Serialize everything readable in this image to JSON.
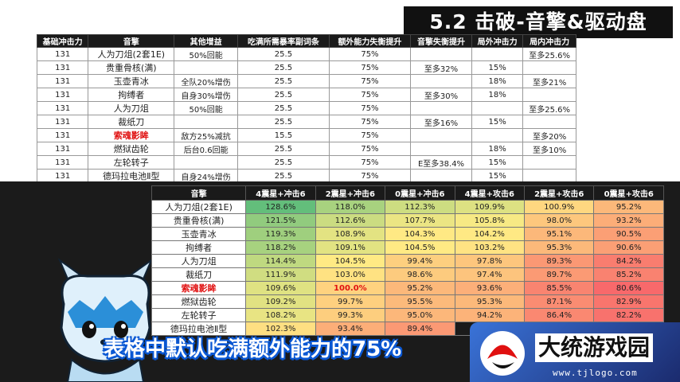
{
  "title": "5.2 击破-音擎&驱动盘",
  "top_table": {
    "headers": [
      "基础冲击力",
      "音擎",
      "其他增益",
      "吃满所需暴率副词条",
      "额外能力失衡提升",
      "音擎失衡提升",
      "局外冲击力",
      "局内冲击力"
    ],
    "rows": [
      [
        "131",
        "人为刀俎(2套1E)",
        "50%回能",
        "25.5",
        "75%",
        "",
        "",
        "至多25.6%"
      ],
      [
        "131",
        "贵重骨核(满)",
        "",
        "25.5",
        "75%",
        "至多32%",
        "15%",
        ""
      ],
      [
        "131",
        "玉壶青冰",
        "全队20%增伤",
        "25.5",
        "75%",
        "",
        "18%",
        "至多21%"
      ],
      [
        "131",
        "拘缚者",
        "自身30%增伤",
        "25.5",
        "75%",
        "至多30%",
        "18%",
        ""
      ],
      [
        "131",
        "人为刀俎",
        "50%回能",
        "25.5",
        "75%",
        "",
        "",
        "至多25.6%"
      ],
      [
        "131",
        "裁纸刀",
        "",
        "25.5",
        "75%",
        "至多16%",
        "15%",
        ""
      ],
      [
        "131",
        "索魂影眸",
        "敌方25%减抗",
        "15.5",
        "75%",
        "",
        "",
        "至多20%"
      ],
      [
        "131",
        "燃狱齿轮",
        "后台0.6回能",
        "25.5",
        "75%",
        "",
        "18%",
        "至多10%"
      ],
      [
        "131",
        "左轮转子",
        "",
        "25.5",
        "75%",
        "E至多38.4%",
        "15%",
        ""
      ],
      [
        "131",
        "德玛拉电池Ⅱ型",
        "自身24%增伤",
        "25.5",
        "75%",
        "",
        "15%",
        ""
      ]
    ]
  },
  "bottom_table": {
    "headers": [
      "音擎",
      "4震星+冲击6",
      "2震星+冲击6",
      "0震星+冲击6",
      "4震星+攻击6",
      "2震星+攻击6",
      "0震星+攻击6"
    ],
    "rows": [
      [
        "人为刀俎(2套1E)",
        "128.6%",
        "118.0%",
        "112.3%",
        "109.9%",
        "100.9%",
        "95.2%"
      ],
      [
        "贵重骨核(满)",
        "121.5%",
        "112.6%",
        "107.7%",
        "105.8%",
        "98.0%",
        "93.2%"
      ],
      [
        "玉壶青冰",
        "119.3%",
        "108.9%",
        "104.3%",
        "104.2%",
        "95.1%",
        "90.5%"
      ],
      [
        "拘缚者",
        "118.2%",
        "109.1%",
        "104.5%",
        "103.2%",
        "95.3%",
        "90.6%"
      ],
      [
        "人为刀俎",
        "114.4%",
        "104.5%",
        "99.4%",
        "97.8%",
        "89.3%",
        "84.2%"
      ],
      [
        "裁纸刀",
        "111.9%",
        "103.0%",
        "98.6%",
        "97.4%",
        "89.7%",
        "85.2%"
      ],
      [
        "索魂影眸",
        "109.6%",
        "100.0%",
        "95.2%",
        "93.6%",
        "85.5%",
        "80.6%"
      ],
      [
        "燃狱齿轮",
        "109.2%",
        "99.7%",
        "95.5%",
        "95.3%",
        "87.1%",
        "82.9%"
      ],
      [
        "左轮转子",
        "108.2%",
        "99.3%",
        "95.0%",
        "94.2%",
        "86.4%",
        "82.2%"
      ],
      [
        "德玛拉电池Ⅱ型",
        "102.3%",
        "93.4%",
        "89.4%",
        "",
        "",
        "80.6%"
      ]
    ]
  },
  "caption": "表格中默认吃满额外能力的75%",
  "logo": {
    "name": "大统游戏园",
    "url": "www.tjlogo.com"
  },
  "colors": {
    "highlight_red": "#e01010",
    "high": "#63be7b",
    "mid": "#ffeb84",
    "low": "#f8696b"
  }
}
